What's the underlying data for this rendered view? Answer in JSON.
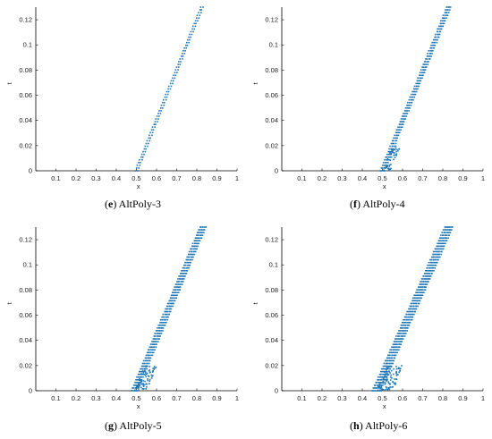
{
  "colors": {
    "series": "#1f77b4",
    "axis": "#000000"
  },
  "panels": [
    {
      "letter": "e",
      "caption": "AltPoly-3"
    },
    {
      "letter": "f",
      "caption": "AltPoly-4"
    },
    {
      "letter": "g",
      "caption": "AltPoly-5"
    },
    {
      "letter": "h",
      "caption": "AltPoly-6"
    }
  ],
  "chart_data": [
    {
      "type": "scatter",
      "xlabel": "x",
      "ylabel": "t",
      "xlim": [
        0,
        1
      ],
      "ylim": [
        0,
        0.13
      ],
      "xticks": [
        "0.1",
        "0.2",
        "0.3",
        "0.4",
        "0.5",
        "0.6",
        "0.7",
        "0.8",
        "0.9",
        "1"
      ],
      "yticks": [
        "0",
        "0.02",
        "0.04",
        "0.06",
        "0.08",
        "0.1",
        "0.12"
      ],
      "grid": false,
      "series": [
        {
          "front_start": [
            0.5,
            0
          ],
          "front_end": [
            0.825,
            0.13
          ],
          "band_width": 0.01
        }
      ]
    },
    {
      "type": "scatter",
      "xlabel": "x",
      "ylabel": "t",
      "xlim": [
        0,
        1
      ],
      "ylim": [
        0,
        0.13
      ],
      "xticks": [
        "0.1",
        "0.2",
        "0.3",
        "0.4",
        "0.5",
        "0.6",
        "0.7",
        "0.8",
        "0.9",
        "1"
      ],
      "yticks": [
        "0",
        "0.02",
        "0.04",
        "0.06",
        "0.08",
        "0.1",
        "0.12"
      ],
      "grid": false,
      "series": [
        {
          "front_start": [
            0.5,
            0
          ],
          "front_end": [
            0.83,
            0.13
          ],
          "band_width": 0.02
        }
      ]
    },
    {
      "type": "scatter",
      "xlabel": "x",
      "ylabel": "t",
      "xlim": [
        0,
        1
      ],
      "ylim": [
        0,
        0.13
      ],
      "xticks": [
        "0.1",
        "0.2",
        "0.3",
        "0.4",
        "0.5",
        "0.6",
        "0.7",
        "0.8",
        "0.9",
        "1"
      ],
      "yticks": [
        "0",
        "0.02",
        "0.04",
        "0.06",
        "0.08",
        "0.1",
        "0.12"
      ],
      "grid": false,
      "series": [
        {
          "front_start": [
            0.49,
            0
          ],
          "front_end": [
            0.83,
            0.13
          ],
          "band_width": 0.03
        }
      ]
    },
    {
      "type": "scatter",
      "xlabel": "x",
      "ylabel": "t",
      "xlim": [
        0,
        1
      ],
      "ylim": [
        0,
        0.13
      ],
      "xticks": [
        "0.1",
        "0.2",
        "0.3",
        "0.4",
        "0.5",
        "0.6",
        "0.7",
        "0.8",
        "0.9",
        "1"
      ],
      "yticks": [
        "0",
        "0.02",
        "0.04",
        "0.06",
        "0.08",
        "0.1",
        "0.12"
      ],
      "grid": false,
      "series": [
        {
          "front_start": [
            0.47,
            0
          ],
          "front_end": [
            0.83,
            0.13
          ],
          "band_width": 0.04
        }
      ]
    }
  ]
}
